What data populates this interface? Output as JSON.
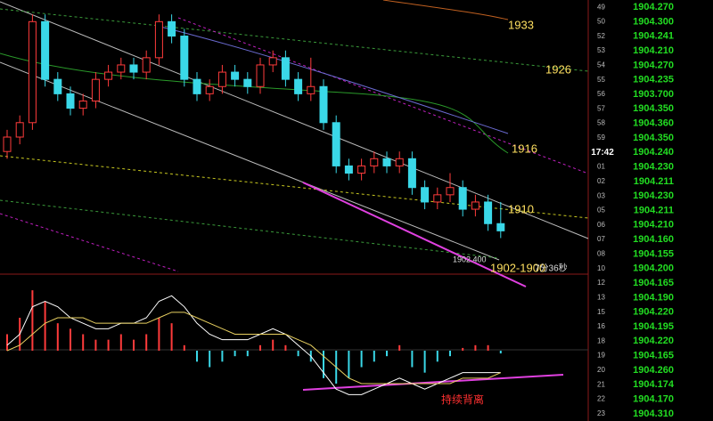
{
  "chart_data": {
    "type": "candlestick",
    "open": [
      1918,
      1920,
      1922,
      1936,
      1928,
      1926,
      1924,
      1925,
      1928,
      1929,
      1930,
      1929,
      1931,
      1936,
      1934,
      1928,
      1926,
      1927,
      1929,
      1928,
      1927,
      1930,
      1931,
      1928,
      1926,
      1927,
      1922,
      1916,
      1915,
      1916,
      1917,
      1916,
      1917,
      1913,
      1911,
      1912,
      1913,
      1910,
      1911,
      1908
    ],
    "high": [
      1921,
      1923,
      1937,
      1937,
      1929,
      1927,
      1926,
      1929,
      1930,
      1931,
      1931,
      1932,
      1937,
      1937,
      1935,
      1929,
      1928,
      1930,
      1930,
      1929,
      1931,
      1932,
      1932,
      1929,
      1931,
      1928,
      1923,
      1917,
      1917,
      1918,
      1918,
      1918,
      1918,
      1914,
      1913,
      1915,
      1914,
      1912,
      1912,
      1911
    ],
    "low": [
      1917,
      1919,
      1921,
      1927,
      1925,
      1923,
      1923,
      1924,
      1927,
      1928,
      1928,
      1928,
      1930,
      1933,
      1927,
      1925,
      1925,
      1926,
      1927,
      1926,
      1926,
      1929,
      1927,
      1925,
      1925,
      1921,
      1915,
      1914,
      1914,
      1915,
      1915,
      1915,
      1912,
      1910,
      1910,
      1911,
      1909,
      1909,
      1907,
      1906
    ],
    "close": [
      1920,
      1922,
      1936,
      1928,
      1926,
      1924,
      1925,
      1928,
      1929,
      1930,
      1929,
      1931,
      1936,
      1934,
      1928,
      1926,
      1927,
      1929,
      1928,
      1927,
      1930,
      1931,
      1928,
      1926,
      1927,
      1922,
      1916,
      1915,
      1916,
      1917,
      1916,
      1917,
      1913,
      1911,
      1912,
      1913,
      1910,
      1911,
      1908,
      1907
    ],
    "ylim": [
      1901,
      1939
    ],
    "up_color": "#ff3b3b",
    "down_color": "#3ad8e8",
    "macd": {
      "ylim": [
        -1.2,
        1.2
      ],
      "histogram": [
        0.3,
        0.6,
        1.1,
        0.9,
        0.5,
        0.4,
        0.3,
        0.2,
        0.2,
        0.3,
        0.2,
        0.3,
        0.6,
        0.5,
        0.1,
        -0.2,
        -0.3,
        -0.2,
        -0.1,
        -0.1,
        0.1,
        0.2,
        0.1,
        -0.1,
        -0.2,
        -0.5,
        -0.6,
        -0.5,
        -0.3,
        -0.2,
        -0.1,
        0.1,
        -0.3,
        -0.4,
        -0.2,
        -0.1,
        0.05,
        0.1,
        0.1,
        -0.05
      ],
      "dif": [
        0.1,
        0.3,
        0.8,
        0.9,
        0.8,
        0.6,
        0.5,
        0.4,
        0.4,
        0.5,
        0.5,
        0.6,
        0.9,
        1.0,
        0.8,
        0.5,
        0.3,
        0.2,
        0.2,
        0.2,
        0.3,
        0.4,
        0.3,
        0.1,
        -0.1,
        -0.4,
        -0.7,
        -0.8,
        -0.8,
        -0.7,
        -0.6,
        -0.5,
        -0.6,
        -0.7,
        -0.6,
        -0.5,
        -0.4,
        -0.4,
        -0.4,
        -0.4
      ],
      "dea": [
        0.0,
        0.1,
        0.3,
        0.5,
        0.6,
        0.6,
        0.6,
        0.5,
        0.5,
        0.5,
        0.5,
        0.5,
        0.6,
        0.7,
        0.7,
        0.6,
        0.5,
        0.4,
        0.3,
        0.3,
        0.3,
        0.3,
        0.3,
        0.2,
        0.1,
        -0.1,
        -0.3,
        -0.5,
        -0.6,
        -0.6,
        -0.6,
        -0.6,
        -0.6,
        -0.6,
        -0.6,
        -0.6,
        -0.5,
        -0.5,
        -0.5,
        -0.4
      ],
      "dif_color": "#ffffff",
      "dea_color": "#e8d060"
    },
    "annotations": [
      "1933",
      "1926",
      "1916",
      "1910",
      "1902-1900",
      "1902.400",
      "7分36秒",
      "持续背离"
    ]
  },
  "tick_list": [
    [
      "49",
      "1904.270"
    ],
    [
      "50",
      "1904.300"
    ],
    [
      "52",
      "1904.241"
    ],
    [
      "53",
      "1904.210"
    ],
    [
      "54",
      "1904.270"
    ],
    [
      "55",
      "1904.235"
    ],
    [
      "56",
      "1903.700"
    ],
    [
      "57",
      "1904.350"
    ],
    [
      "58",
      "1904.360"
    ],
    [
      "59",
      "1904.350"
    ],
    [
      "17:42",
      "1904.240"
    ],
    [
      "01",
      "1904.230"
    ],
    [
      "02",
      "1904.211"
    ],
    [
      "03",
      "1904.230"
    ],
    [
      "05",
      "1904.211"
    ],
    [
      "06",
      "1904.210"
    ],
    [
      "07",
      "1904.160"
    ],
    [
      "08",
      "1904.155"
    ],
    [
      "10",
      "1904.200"
    ],
    [
      "12",
      "1904.165"
    ],
    [
      "13",
      "1904.190"
    ],
    [
      "15",
      "1904.220"
    ],
    [
      "16",
      "1904.195"
    ],
    [
      "18",
      "1904.220"
    ],
    [
      "19",
      "1904.165"
    ],
    [
      "20",
      "1904.260"
    ],
    [
      "21",
      "1904.174"
    ],
    [
      "22",
      "1904.170"
    ],
    [
      "23",
      "1904.310"
    ]
  ]
}
